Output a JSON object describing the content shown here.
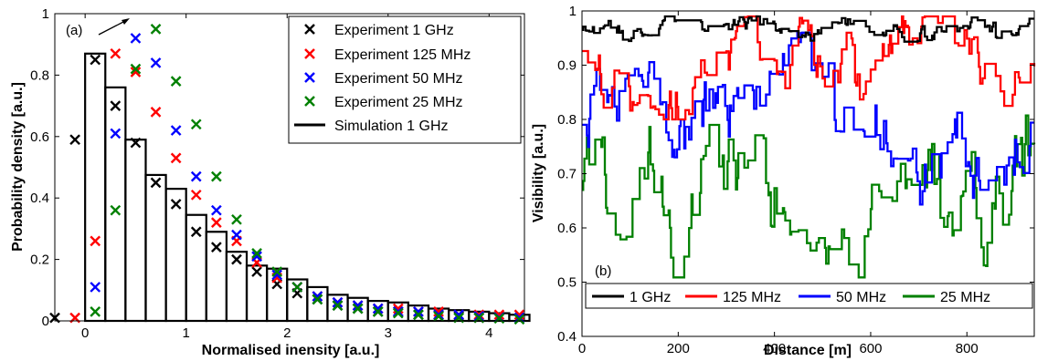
{
  "chart_data": [
    {
      "id": "left",
      "type": "scatter",
      "panel_label": "(a)",
      "xlabel": "Normalised inensity [a.u.]",
      "ylabel": "Probability density [a.u.]",
      "xlim": [
        -0.3,
        4.35
      ],
      "ylim": [
        0,
        1
      ],
      "xticks": [
        0,
        1,
        2,
        3,
        4
      ],
      "yticks": [
        0,
        0.2,
        0.4,
        0.6,
        0.8,
        1
      ],
      "ytick_labels": [
        "0",
        "0.2",
        "0.4",
        "0.6",
        "0.8",
        "1"
      ],
      "legend_position": "top-right",
      "colors": {
        "1 GHz": "#000000",
        "125 MHz": "#ff0000",
        "50 MHz": "#0000ff",
        "25 MHz": "#008000"
      },
      "histogram": {
        "name": "Simulation   1 GHz",
        "bin_width": 0.2,
        "bins": [
          {
            "x": 0.1,
            "y": 0.87
          },
          {
            "x": 0.3,
            "y": 0.76
          },
          {
            "x": 0.5,
            "y": 0.59
          },
          {
            "x": 0.7,
            "y": 0.475
          },
          {
            "x": 0.9,
            "y": 0.43
          },
          {
            "x": 1.1,
            "y": 0.345
          },
          {
            "x": 1.3,
            "y": 0.29
          },
          {
            "x": 1.5,
            "y": 0.225
          },
          {
            "x": 1.7,
            "y": 0.18
          },
          {
            "x": 1.9,
            "y": 0.17
          },
          {
            "x": 2.1,
            "y": 0.135
          },
          {
            "x": 2.3,
            "y": 0.11
          },
          {
            "x": 2.5,
            "y": 0.085
          },
          {
            "x": 2.7,
            "y": 0.075
          },
          {
            "x": 2.9,
            "y": 0.065
          },
          {
            "x": 3.1,
            "y": 0.06
          },
          {
            "x": 3.3,
            "y": 0.05
          },
          {
            "x": 3.5,
            "y": 0.04
          },
          {
            "x": 3.7,
            "y": 0.035
          },
          {
            "x": 3.9,
            "y": 0.03
          },
          {
            "x": 4.1,
            "y": 0.025
          },
          {
            "x": 4.3,
            "y": 0.02
          }
        ]
      },
      "series": [
        {
          "name": "Experiment 1 GHz",
          "color": "#000000",
          "points": [
            [
              -0.3,
              0.01
            ],
            [
              -0.1,
              0.59
            ],
            [
              0.1,
              0.85
            ],
            [
              0.3,
              0.7
            ],
            [
              0.5,
              0.58
            ],
            [
              0.7,
              0.45
            ],
            [
              0.9,
              0.38
            ],
            [
              1.1,
              0.29
            ],
            [
              1.3,
              0.24
            ],
            [
              1.5,
              0.2
            ],
            [
              1.7,
              0.16
            ],
            [
              1.9,
              0.12
            ],
            [
              2.1,
              0.09
            ],
            [
              2.3,
              0.07
            ],
            [
              2.5,
              0.05
            ],
            [
              2.7,
              0.04
            ],
            [
              2.9,
              0.03
            ],
            [
              3.1,
              0.03
            ],
            [
              3.3,
              0.02
            ],
            [
              3.5,
              0.02
            ],
            [
              3.7,
              0.015
            ],
            [
              3.9,
              0.01
            ],
            [
              4.1,
              0.01
            ],
            [
              4.3,
              0.01
            ]
          ]
        },
        {
          "name": "Experiment 125 MHz",
          "color": "#ff0000",
          "points": [
            [
              -0.1,
              0.01
            ],
            [
              0.1,
              0.26
            ],
            [
              0.3,
              0.87
            ],
            [
              0.5,
              0.81
            ],
            [
              0.7,
              0.68
            ],
            [
              0.9,
              0.53
            ],
            [
              1.1,
              0.41
            ],
            [
              1.3,
              0.32
            ],
            [
              1.5,
              0.26
            ],
            [
              1.7,
              0.19
            ],
            [
              1.9,
              0.14
            ],
            [
              2.1,
              0.11
            ],
            [
              2.3,
              0.08
            ],
            [
              2.5,
              0.06
            ],
            [
              2.7,
              0.05
            ],
            [
              2.9,
              0.04
            ],
            [
              3.1,
              0.04
            ],
            [
              3.3,
              0.03
            ],
            [
              3.5,
              0.03
            ],
            [
              3.7,
              0.02
            ],
            [
              3.9,
              0.02
            ],
            [
              4.1,
              0.02
            ],
            [
              4.3,
              0.02
            ]
          ]
        },
        {
          "name": "Experiment 50 MHz",
          "color": "#0000ff",
          "points": [
            [
              0.1,
              0.11
            ],
            [
              0.3,
              0.61
            ],
            [
              0.5,
              0.92
            ],
            [
              0.7,
              0.84
            ],
            [
              0.9,
              0.62
            ],
            [
              1.1,
              0.47
            ],
            [
              1.3,
              0.36
            ],
            [
              1.5,
              0.28
            ],
            [
              1.7,
              0.21
            ],
            [
              1.9,
              0.15
            ],
            [
              2.1,
              0.11
            ],
            [
              2.3,
              0.08
            ],
            [
              2.5,
              0.06
            ],
            [
              2.7,
              0.05
            ],
            [
              2.9,
              0.04
            ],
            [
              3.1,
              0.03
            ],
            [
              3.3,
              0.03
            ],
            [
              3.5,
              0.02
            ],
            [
              3.7,
              0.02
            ],
            [
              3.9,
              0.015
            ],
            [
              4.1,
              0.01
            ],
            [
              4.3,
              0.01
            ]
          ]
        },
        {
          "name": "Experiment 25 MHz",
          "color": "#008000",
          "points": [
            [
              0.1,
              0.03
            ],
            [
              0.3,
              0.36
            ],
            [
              0.5,
              0.82
            ],
            [
              0.7,
              0.95
            ],
            [
              0.9,
              0.78
            ],
            [
              1.1,
              0.64
            ],
            [
              1.3,
              0.47
            ],
            [
              1.5,
              0.33
            ],
            [
              1.7,
              0.22
            ],
            [
              1.9,
              0.16
            ],
            [
              2.1,
              0.11
            ],
            [
              2.3,
              0.07
            ],
            [
              2.5,
              0.05
            ],
            [
              2.7,
              0.04
            ],
            [
              2.9,
              0.03
            ],
            [
              3.1,
              0.025
            ],
            [
              3.3,
              0.02
            ],
            [
              3.5,
              0.015
            ],
            [
              3.7,
              0.01
            ],
            [
              3.9,
              0.01
            ],
            [
              4.1,
              0.008
            ],
            [
              4.3,
              0.005
            ]
          ]
        }
      ]
    },
    {
      "id": "right",
      "type": "line",
      "panel_label": "(b)",
      "xlabel": "Distance [m]",
      "ylabel": "Visibility [a.u.]",
      "xlim": [
        0,
        940
      ],
      "ylim": [
        0.4,
        1
      ],
      "xticks": [
        0,
        200,
        400,
        600,
        800
      ],
      "yticks": [
        0.4,
        0.5,
        0.6,
        0.7,
        0.8,
        0.9,
        1
      ],
      "ytick_labels": [
        "0.4",
        "0.5",
        "0.6",
        "0.7",
        "0.8",
        "0.9",
        "1"
      ],
      "legend_position": "bottom",
      "series": [
        {
          "name": "1 GHz",
          "color": "#000000",
          "mean": 0.965,
          "spread": 0.015,
          "min": 0.92,
          "max": 0.99
        },
        {
          "name": "125 MHz",
          "color": "#ff0000",
          "mean": 0.9,
          "spread": 0.05,
          "min": 0.8,
          "max": 0.99
        },
        {
          "name": "50 MHz",
          "color": "#0000ff",
          "mean": 0.79,
          "spread": 0.07,
          "min": 0.6,
          "max": 0.96
        },
        {
          "name": "25 MHz",
          "color": "#008000",
          "mean": 0.67,
          "spread": 0.08,
          "min": 0.45,
          "max": 0.86
        }
      ]
    }
  ],
  "legend_left": [
    "Experiment 1 GHz",
    "Experiment 125 MHz",
    "Experiment 50 MHz",
    "Experiment 25 MHz",
    "Simulation   1 GHz"
  ],
  "legend_right": [
    "1 GHz",
    "125 MHz",
    "50 MHz",
    "25 MHz"
  ]
}
